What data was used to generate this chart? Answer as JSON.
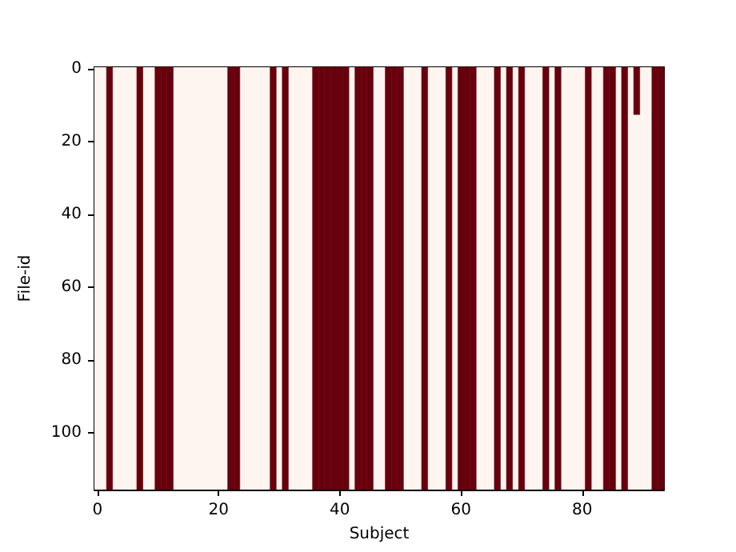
{
  "chart_data": {
    "type": "bar",
    "xlabel": "Subject",
    "ylabel": "File-id",
    "x": [
      2,
      7,
      10,
      11,
      12,
      22,
      23,
      29,
      31,
      36,
      37,
      38,
      39,
      40,
      41,
      43,
      44,
      45,
      48,
      49,
      50,
      54,
      58,
      60,
      61,
      62,
      66,
      68,
      70,
      74,
      76,
      81,
      84,
      85,
      87,
      89,
      92,
      93
    ],
    "base": [
      -0.5,
      -0.5,
      -0.5,
      -0.5,
      -0.5,
      -0.5,
      -0.5,
      -0.5,
      -0.5,
      -0.5,
      -0.5,
      -0.5,
      -0.5,
      -0.5,
      -0.5,
      -0.5,
      -0.5,
      -0.5,
      -0.5,
      -0.5,
      -0.5,
      -0.5,
      -0.5,
      -0.5,
      -0.5,
      -0.5,
      -0.5,
      -0.5,
      -0.5,
      -0.5,
      -0.5,
      -0.5,
      -0.5,
      -0.5,
      -0.5,
      -0.5,
      -0.5,
      -0.5
    ],
    "values": [
      116,
      116,
      116,
      116,
      116,
      116,
      116,
      116,
      116,
      116,
      116,
      116,
      116,
      116,
      116,
      116,
      116,
      116,
      116,
      116,
      116,
      116,
      116,
      116,
      116,
      116,
      116,
      116,
      116,
      116,
      116,
      116,
      116,
      116,
      116,
      13,
      116,
      116
    ],
    "color": "#67000d",
    "bands": [
      {
        "axis": "x",
        "from": -0.5,
        "to": 93.5,
        "color": "#fff5f0"
      }
    ],
    "xlim": [
      -0.5,
      93.5
    ],
    "xticks": [
      0,
      20,
      40,
      60,
      80
    ],
    "ylim": [
      115.5,
      -0.5
    ],
    "yticks": [
      0,
      20,
      40,
      60,
      80,
      100
    ]
  }
}
